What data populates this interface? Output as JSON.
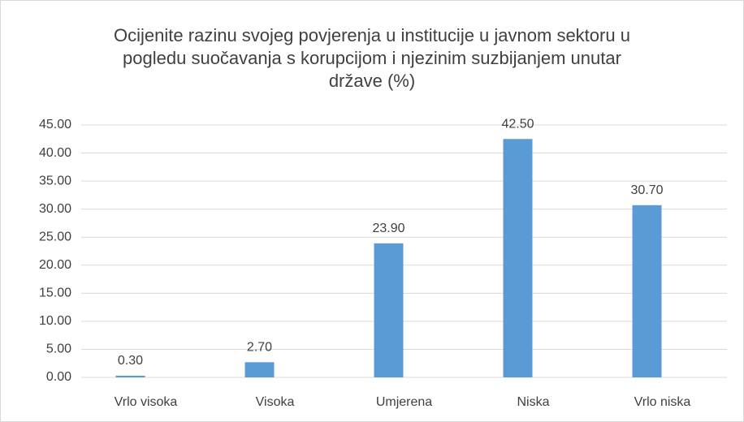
{
  "chart_data": {
    "type": "bar",
    "title": "Ocijenite razinu svojeg povjerenja u institucije u javnom sektoru u pogledu suočavanja s korupcijom i njezinim suzbijanjem unutar države (%)",
    "categories": [
      "Vrlo visoka",
      "Visoka",
      "Umjerena",
      "Niska",
      "Vrlo niska"
    ],
    "values": [
      0.3,
      2.7,
      23.9,
      42.5,
      30.7
    ],
    "value_labels": [
      "0.30",
      "2.70",
      "23.90",
      "42.50",
      "30.70"
    ],
    "color": "#5b9bd5",
    "ylim": [
      0,
      45
    ],
    "yticks": [
      {
        "value": 0,
        "label": "0.00"
      },
      {
        "value": 5,
        "label": "5.00"
      },
      {
        "value": 10,
        "label": "10.00"
      },
      {
        "value": 15,
        "label": "15.00"
      },
      {
        "value": 20,
        "label": "20.00"
      },
      {
        "value": 25,
        "label": "25.00"
      },
      {
        "value": 30,
        "label": "30.00"
      },
      {
        "value": 35,
        "label": "35.00"
      },
      {
        "value": 40,
        "label": "40.00"
      },
      {
        "value": 45,
        "label": "45.00"
      }
    ],
    "grid": true
  }
}
